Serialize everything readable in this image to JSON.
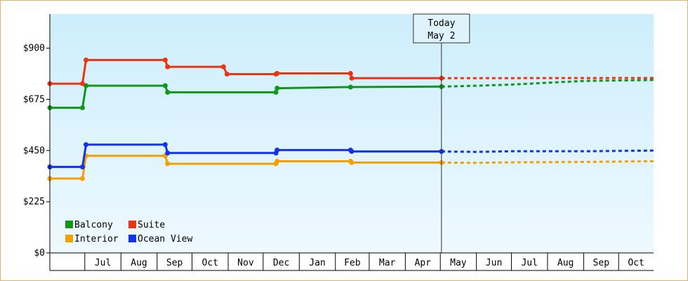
{
  "chart_data": {
    "type": "line",
    "title": "",
    "xlabel": "",
    "ylabel": "",
    "ylim": [
      0,
      1050
    ],
    "yticks": [
      0,
      225,
      450,
      675,
      900
    ],
    "ytick_labels": [
      "$0",
      "$225",
      "$450",
      "$675",
      "$900"
    ],
    "x_start": "2023-06-01",
    "x_end": "2024-10-31",
    "month_labels": [
      {
        "label": "Jul",
        "date": "2023-07-01"
      },
      {
        "label": "Aug",
        "date": "2023-08-01"
      },
      {
        "label": "Sep",
        "date": "2023-09-01"
      },
      {
        "label": "Oct",
        "date": "2023-10-01"
      },
      {
        "label": "Nov",
        "date": "2023-11-01"
      },
      {
        "label": "Dec",
        "date": "2023-12-01"
      },
      {
        "label": "Jan",
        "date": "2024-01-01"
      },
      {
        "label": "Feb",
        "date": "2024-02-01"
      },
      {
        "label": "Mar",
        "date": "2024-03-01"
      },
      {
        "label": "Apr",
        "date": "2024-04-01"
      },
      {
        "label": "May",
        "date": "2024-05-01"
      },
      {
        "label": "Jun",
        "date": "2024-06-01"
      },
      {
        "label": "Jul",
        "date": "2024-07-01"
      },
      {
        "label": "Aug",
        "date": "2024-08-01"
      },
      {
        "label": "Sep",
        "date": "2024-09-01"
      },
      {
        "label": "Oct",
        "date": "2024-10-01"
      }
    ],
    "grid": false,
    "legend_position": "bottom-left",
    "annotation": {
      "line1": "Today",
      "line2": "May 2",
      "date": "2024-05-02"
    },
    "series": [
      {
        "name": "Balcony",
        "color": "#109618",
        "points": [
          {
            "date": "2023-06-01",
            "value": 638,
            "marker": true
          },
          {
            "date": "2023-06-29",
            "value": 638,
            "marker": true
          },
          {
            "date": "2023-07-02",
            "value": 735,
            "marker": true
          },
          {
            "date": "2023-09-08",
            "value": 735,
            "marker": true
          },
          {
            "date": "2023-09-10",
            "value": 706,
            "marker": true
          },
          {
            "date": "2023-12-12",
            "value": 706,
            "marker": true
          },
          {
            "date": "2023-12-13",
            "value": 724,
            "marker": true
          },
          {
            "date": "2024-02-14",
            "value": 729,
            "marker": true
          },
          {
            "date": "2024-05-02",
            "value": 731,
            "marker": true
          }
        ],
        "forecast": [
          {
            "date": "2024-05-02",
            "value": 731
          },
          {
            "date": "2024-06-01",
            "value": 735
          },
          {
            "date": "2024-07-01",
            "value": 740
          },
          {
            "date": "2024-08-01",
            "value": 748
          },
          {
            "date": "2024-09-01",
            "value": 756
          },
          {
            "date": "2024-10-31",
            "value": 760
          }
        ]
      },
      {
        "name": "Suite",
        "color": "#ee3311",
        "points": [
          {
            "date": "2023-06-01",
            "value": 744,
            "marker": true
          },
          {
            "date": "2023-06-29",
            "value": 744,
            "marker": true
          },
          {
            "date": "2023-07-02",
            "value": 848,
            "marker": true
          },
          {
            "date": "2023-09-08",
            "value": 848,
            "marker": true
          },
          {
            "date": "2023-09-10",
            "value": 818,
            "marker": true
          },
          {
            "date": "2023-10-28",
            "value": 818,
            "marker": true
          },
          {
            "date": "2023-10-31",
            "value": 786,
            "marker": true
          },
          {
            "date": "2023-12-12",
            "value": 786,
            "marker": true
          },
          {
            "date": "2023-12-13",
            "value": 789,
            "marker": true
          },
          {
            "date": "2024-02-14",
            "value": 789,
            "marker": true
          },
          {
            "date": "2024-02-15",
            "value": 768,
            "marker": true
          },
          {
            "date": "2024-05-02",
            "value": 768,
            "marker": true
          }
        ],
        "forecast": [
          {
            "date": "2024-05-02",
            "value": 768
          },
          {
            "date": "2024-10-31",
            "value": 769
          }
        ]
      },
      {
        "name": "Interior",
        "color": "#f5a000",
        "points": [
          {
            "date": "2023-06-01",
            "value": 327,
            "marker": true
          },
          {
            "date": "2023-06-29",
            "value": 327,
            "marker": true
          },
          {
            "date": "2023-07-02",
            "value": 427,
            "marker": true
          },
          {
            "date": "2023-09-08",
            "value": 427,
            "marker": true
          },
          {
            "date": "2023-09-10",
            "value": 392,
            "marker": true
          },
          {
            "date": "2023-12-12",
            "value": 392,
            "marker": true
          },
          {
            "date": "2023-12-13",
            "value": 403,
            "marker": true
          },
          {
            "date": "2024-02-14",
            "value": 403,
            "marker": true
          },
          {
            "date": "2024-02-15",
            "value": 397,
            "marker": true
          },
          {
            "date": "2024-05-02",
            "value": 397,
            "marker": true
          }
        ],
        "forecast": [
          {
            "date": "2024-05-02",
            "value": 397
          },
          {
            "date": "2024-06-01",
            "value": 396
          },
          {
            "date": "2024-07-01",
            "value": 398
          },
          {
            "date": "2024-09-01",
            "value": 400
          },
          {
            "date": "2024-10-31",
            "value": 403
          }
        ]
      },
      {
        "name": "Ocean View",
        "color": "#1133ee",
        "points": [
          {
            "date": "2023-06-01",
            "value": 378,
            "marker": true
          },
          {
            "date": "2023-06-29",
            "value": 378,
            "marker": true
          },
          {
            "date": "2023-07-02",
            "value": 476,
            "marker": true
          },
          {
            "date": "2023-09-08",
            "value": 476,
            "marker": true
          },
          {
            "date": "2023-09-10",
            "value": 439,
            "marker": true
          },
          {
            "date": "2023-12-12",
            "value": 439,
            "marker": true
          },
          {
            "date": "2023-12-13",
            "value": 452,
            "marker": true
          },
          {
            "date": "2024-02-14",
            "value": 452,
            "marker": true
          },
          {
            "date": "2024-02-15",
            "value": 446,
            "marker": true
          },
          {
            "date": "2024-05-02",
            "value": 446,
            "marker": true
          }
        ],
        "forecast": [
          {
            "date": "2024-05-02",
            "value": 446
          },
          {
            "date": "2024-06-01",
            "value": 444
          },
          {
            "date": "2024-07-01",
            "value": 447
          },
          {
            "date": "2024-09-01",
            "value": 447
          },
          {
            "date": "2024-10-31",
            "value": 450
          }
        ]
      }
    ]
  }
}
